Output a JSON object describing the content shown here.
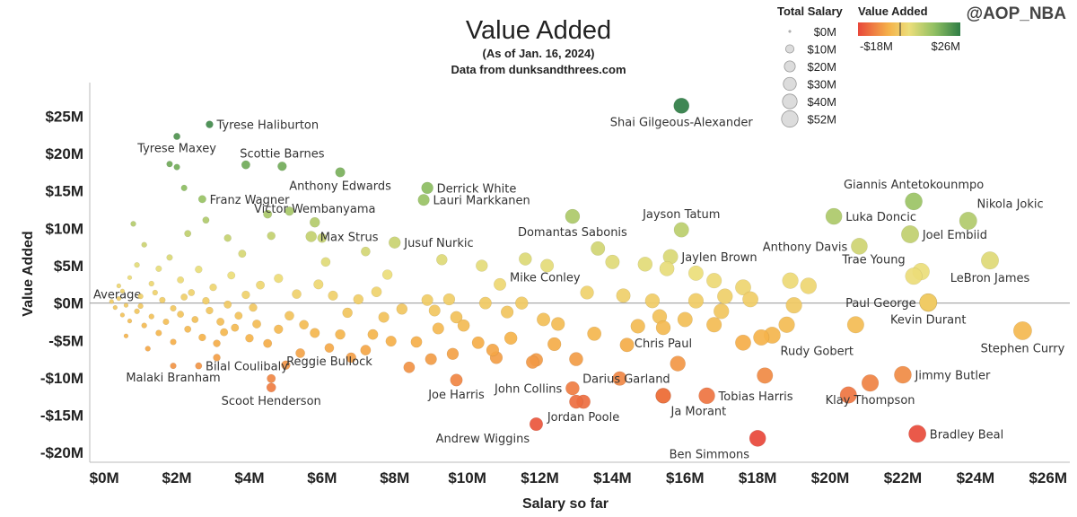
{
  "header": {
    "title": "Value Added",
    "subtitle": "(As of Jan. 16, 2024)",
    "source": "Data from dunksandthrees.com",
    "watermark": "@AOP_NBA"
  },
  "legend": {
    "size_title": "Total Salary",
    "size_entries": [
      "$0M",
      "$10M",
      "$20M",
      "$30M",
      "$40M",
      "$52M"
    ],
    "color_title": "Value Added",
    "color_min_label": "-$18M",
    "color_max_label": "$26M",
    "color_scale": [
      "#e8473a",
      "#f5b24a",
      "#ecde7a",
      "#8fbf62",
      "#2f7d45"
    ]
  },
  "chart_data": {
    "type": "scatter",
    "xlabel": "Salary so far",
    "ylabel": "Value Added",
    "x_unit": "$M",
    "y_unit": "$M",
    "xlim": [
      -0.4,
      26.6
    ],
    "ylim": [
      -21.3,
      29.5
    ],
    "x_ticks": [
      0,
      2,
      4,
      6,
      8,
      10,
      12,
      14,
      16,
      18,
      20,
      22,
      24,
      26
    ],
    "x_tick_labels": [
      "$0M",
      "$2M",
      "$4M",
      "$6M",
      "$8M",
      "$10M",
      "$12M",
      "$14M",
      "$16M",
      "$18M",
      "$20M",
      "$22M",
      "$24M",
      "$26M"
    ],
    "y_ticks": [
      -20,
      -15,
      -10,
      -5,
      0,
      5,
      10,
      15,
      20,
      25
    ],
    "y_tick_labels": [
      "-$20M",
      "-$15M",
      "-$10M",
      "-$5M",
      "$0M",
      "$5M",
      "$10M",
      "$15M",
      "$20M",
      "$25M"
    ],
    "reference_line": {
      "y": 0,
      "label": "Average"
    },
    "grid": false,
    "color_by": "Value Added",
    "size_by": "Total Salary",
    "labeled_points": [
      {
        "name": "Shai Gilgeous-Alexander",
        "x": 15.9,
        "y": 26.4,
        "salary": 35,
        "label_pos": "below"
      },
      {
        "name": "Tyrese Haliburton",
        "x": 2.9,
        "y": 23.9,
        "salary": 5,
        "label_pos": "right"
      },
      {
        "name": "Tyrese Maxey",
        "x": 2.0,
        "y": 22.3,
        "salary": 4,
        "label_pos": "below"
      },
      {
        "name": "Scottie Barnes",
        "x": 4.9,
        "y": 18.3,
        "salary": 9,
        "label_pos": "above"
      },
      {
        "name": "Anthony Edwards",
        "x": 6.5,
        "y": 17.5,
        "salary": 11,
        "label_pos": "below"
      },
      {
        "name": "Derrick White",
        "x": 8.9,
        "y": 15.4,
        "salary": 18,
        "label_pos": "right"
      },
      {
        "name": "Franz Wagner",
        "x": 2.7,
        "y": 13.9,
        "salary": 6,
        "label_pos": "right"
      },
      {
        "name": "Lauri Markkanen",
        "x": 8.8,
        "y": 13.8,
        "salary": 17,
        "label_pos": "right"
      },
      {
        "name": "Victor Wembanyama",
        "x": 5.8,
        "y": 10.8,
        "salary": 12,
        "label_pos": "above"
      },
      {
        "name": "Giannis Antetokounmpo",
        "x": 22.3,
        "y": 13.6,
        "salary": 45,
        "label_pos": "above"
      },
      {
        "name": "Jayson Tatum",
        "x": 15.9,
        "y": 9.8,
        "salary": 32,
        "label_pos": "above"
      },
      {
        "name": "Domantas Sabonis",
        "x": 12.9,
        "y": 11.6,
        "salary": 30,
        "label_pos": "below"
      },
      {
        "name": "Luka Doncic",
        "x": 20.1,
        "y": 11.6,
        "salary": 40,
        "label_pos": "right"
      },
      {
        "name": "Nikola Jokic",
        "x": 23.8,
        "y": 11.0,
        "salary": 47,
        "label_pos": "above-right"
      },
      {
        "name": "Joel Embiid",
        "x": 22.2,
        "y": 9.2,
        "salary": 47,
        "label_pos": "right"
      },
      {
        "name": "Max Strus",
        "x": 5.7,
        "y": 8.9,
        "salary": 15,
        "label_pos": "right"
      },
      {
        "name": "Jusuf Nurkic",
        "x": 8.0,
        "y": 8.1,
        "salary": 18,
        "label_pos": "right"
      },
      {
        "name": "Anthony Davis",
        "x": 20.8,
        "y": 7.6,
        "salary": 40,
        "label_pos": "left"
      },
      {
        "name": "Jaylen Brown",
        "x": 15.6,
        "y": 6.2,
        "salary": 32,
        "label_pos": "right"
      },
      {
        "name": "Trae Young",
        "x": 22.3,
        "y": 3.6,
        "salary": 43,
        "label_pos": "above-left"
      },
      {
        "name": "LeBron James",
        "x": 24.4,
        "y": 5.7,
        "salary": 47,
        "label_pos": "below"
      },
      {
        "name": "Mike Conley",
        "x": 13.3,
        "y": 1.4,
        "salary": 25,
        "label_pos": "above-left"
      },
      {
        "name": "Paul George",
        "x": 22.7,
        "y": 0.1,
        "salary": 45,
        "label_pos": "left"
      },
      {
        "name": "Kevin Durant",
        "x": 22.7,
        "y": 0.1,
        "salary": 47,
        "label_pos": "below"
      },
      {
        "name": "Stephen Curry",
        "x": 25.3,
        "y": -3.7,
        "salary": 52,
        "label_pos": "below"
      },
      {
        "name": "Rudy Gobert",
        "x": 18.4,
        "y": -4.3,
        "salary": 41,
        "label_pos": "below-right"
      },
      {
        "name": "Chris Paul",
        "x": 15.4,
        "y": -3.3,
        "salary": 30,
        "label_pos": "below"
      },
      {
        "name": "Bilal Coulibaly",
        "x": 2.6,
        "y": -8.4,
        "salary": 4,
        "label_pos": "right"
      },
      {
        "name": "Malaki Branham",
        "x": 1.9,
        "y": -8.4,
        "salary": 3,
        "label_pos": "below"
      },
      {
        "name": "Scoot Henderson",
        "x": 4.6,
        "y": -11.3,
        "salary": 10,
        "label_pos": "below"
      },
      {
        "name": "Reggie Bullock",
        "x": 6.2,
        "y": -6.0,
        "salary": 10,
        "label_pos": "below"
      },
      {
        "name": "Darius Garland",
        "x": 15.8,
        "y": -8.1,
        "salary": 34,
        "label_pos": "below-left"
      },
      {
        "name": "Jimmy Butler",
        "x": 22.0,
        "y": -9.6,
        "salary": 45,
        "label_pos": "right"
      },
      {
        "name": "Joe Harris",
        "x": 9.7,
        "y": -10.3,
        "salary": 20,
        "label_pos": "below"
      },
      {
        "name": "John Collins",
        "x": 12.9,
        "y": -11.4,
        "salary": 26,
        "label_pos": "left"
      },
      {
        "name": "Tobias Harris",
        "x": 16.6,
        "y": -12.4,
        "salary": 39,
        "label_pos": "right"
      },
      {
        "name": "Klay Thompson",
        "x": 21.1,
        "y": -10.7,
        "salary": 43,
        "label_pos": "below"
      },
      {
        "name": "Ja Morant",
        "x": 15.4,
        "y": -12.4,
        "salary": 34,
        "label_pos": "below-right"
      },
      {
        "name": "Jordan Poole",
        "x": 13.2,
        "y": -13.2,
        "salary": 27,
        "label_pos": "below"
      },
      {
        "name": "Andrew Wiggins",
        "x": 11.9,
        "y": -16.2,
        "salary": 24,
        "label_pos": "below-left"
      },
      {
        "name": "Ben Simmons",
        "x": 18.0,
        "y": -18.1,
        "salary": 40,
        "label_pos": "below-left"
      },
      {
        "name": "Bradley Beal",
        "x": 22.4,
        "y": -17.5,
        "salary": 46,
        "label_pos": "right"
      }
    ],
    "other_points": [
      {
        "x": 1.8,
        "y": 18.6,
        "salary": 3
      },
      {
        "x": 2.0,
        "y": 18.2,
        "salary": 3
      },
      {
        "x": 2.2,
        "y": 15.4,
        "salary": 3
      },
      {
        "x": 3.9,
        "y": 18.5,
        "salary": 8
      },
      {
        "x": 4.5,
        "y": 11.9,
        "salary": 8
      },
      {
        "x": 3.4,
        "y": 8.7,
        "salary": 5
      },
      {
        "x": 2.3,
        "y": 9.3,
        "salary": 4
      },
      {
        "x": 2.8,
        "y": 11.1,
        "salary": 4
      },
      {
        "x": 5.1,
        "y": 12.3,
        "salary": 9
      },
      {
        "x": 6.0,
        "y": 8.7,
        "salary": 10
      },
      {
        "x": 6.1,
        "y": 5.5,
        "salary": 10
      },
      {
        "x": 7.2,
        "y": 6.9,
        "salary": 10
      },
      {
        "x": 4.6,
        "y": 9.0,
        "salary": 7
      },
      {
        "x": 3.8,
        "y": 6.6,
        "salary": 6
      },
      {
        "x": 7.8,
        "y": 3.8,
        "salary": 12
      },
      {
        "x": 9.3,
        "y": 5.8,
        "salary": 15
      },
      {
        "x": 10.4,
        "y": 5.0,
        "salary": 18
      },
      {
        "x": 10.9,
        "y": 2.5,
        "salary": 20
      },
      {
        "x": 11.6,
        "y": 5.9,
        "salary": 22
      },
      {
        "x": 12.2,
        "y": 5.0,
        "salary": 24
      },
      {
        "x": 14.0,
        "y": 5.5,
        "salary": 28
      },
      {
        "x": 13.6,
        "y": 7.3,
        "salary": 28
      },
      {
        "x": 14.9,
        "y": 5.2,
        "salary": 30
      },
      {
        "x": 15.5,
        "y": 4.6,
        "salary": 31
      },
      {
        "x": 16.3,
        "y": 4.0,
        "salary": 32
      },
      {
        "x": 16.8,
        "y": 3.0,
        "salary": 33
      },
      {
        "x": 17.6,
        "y": 2.1,
        "salary": 36
      },
      {
        "x": 17.8,
        "y": 0.5,
        "salary": 36
      },
      {
        "x": 18.9,
        "y": 3.0,
        "salary": 38
      },
      {
        "x": 19.4,
        "y": 2.3,
        "salary": 39
      },
      {
        "x": 22.5,
        "y": 4.2,
        "salary": 44
      },
      {
        "x": 20.7,
        "y": -2.9,
        "salary": 42
      },
      {
        "x": 22.7,
        "y": 0.0,
        "salary": 45
      },
      {
        "x": 16.3,
        "y": 0.3,
        "salary": 33
      },
      {
        "x": 16.0,
        "y": -2.2,
        "salary": 32
      },
      {
        "x": 17.0,
        "y": -1.1,
        "salary": 34
      },
      {
        "x": 17.6,
        "y": -5.3,
        "salary": 36
      },
      {
        "x": 18.1,
        "y": -4.6,
        "salary": 37
      },
      {
        "x": 19.0,
        "y": -0.3,
        "salary": 38
      },
      {
        "x": 15.3,
        "y": -1.8,
        "salary": 30
      },
      {
        "x": 14.3,
        "y": 1.0,
        "salary": 28
      },
      {
        "x": 15.1,
        "y": 0.3,
        "salary": 30
      },
      {
        "x": 14.7,
        "y": -3.1,
        "salary": 29
      },
      {
        "x": 12.1,
        "y": -2.2,
        "salary": 24
      },
      {
        "x": 11.5,
        "y": 0.0,
        "salary": 22
      },
      {
        "x": 11.1,
        "y": -1.2,
        "salary": 21
      },
      {
        "x": 10.5,
        "y": 0.0,
        "salary": 20
      },
      {
        "x": 9.7,
        "y": -1.9,
        "salary": 19
      },
      {
        "x": 9.5,
        "y": 0.5,
        "salary": 18
      },
      {
        "x": 9.1,
        "y": -1.0,
        "salary": 17
      },
      {
        "x": 8.9,
        "y": 0.4,
        "salary": 17
      },
      {
        "x": 10.3,
        "y": -5.3,
        "salary": 20
      },
      {
        "x": 10.8,
        "y": -7.3,
        "salary": 21
      },
      {
        "x": 11.2,
        "y": -4.7,
        "salary": 22
      },
      {
        "x": 11.8,
        "y": -7.9,
        "salary": 23
      },
      {
        "x": 12.4,
        "y": -5.5,
        "salary": 25
      },
      {
        "x": 13.0,
        "y": -7.5,
        "salary": 26
      },
      {
        "x": 14.4,
        "y": -5.6,
        "salary": 28
      },
      {
        "x": 14.2,
        "y": -10.1,
        "salary": 28
      },
      {
        "x": 9.0,
        "y": -7.5,
        "salary": 17
      },
      {
        "x": 8.6,
        "y": -5.2,
        "salary": 16
      },
      {
        "x": 8.4,
        "y": -8.6,
        "salary": 16
      },
      {
        "x": 7.2,
        "y": -6.3,
        "salary": 13
      },
      {
        "x": 6.5,
        "y": -4.2,
        "salary": 12
      },
      {
        "x": 5.8,
        "y": -4.0,
        "salary": 11
      },
      {
        "x": 5.5,
        "y": -2.9,
        "salary": 10
      },
      {
        "x": 5.1,
        "y": -1.7,
        "salary": 10
      },
      {
        "x": 4.8,
        "y": -3.5,
        "salary": 9
      },
      {
        "x": 4.2,
        "y": -2.8,
        "salary": 8
      },
      {
        "x": 4.0,
        "y": -4.7,
        "salary": 7
      },
      {
        "x": 3.6,
        "y": -3.3,
        "salary": 6
      },
      {
        "x": 3.2,
        "y": -2.5,
        "salary": 6
      },
      {
        "x": 6.7,
        "y": -1.3,
        "salary": 12
      },
      {
        "x": 7.0,
        "y": 0.5,
        "salary": 12
      },
      {
        "x": 7.5,
        "y": 1.5,
        "salary": 13
      },
      {
        "x": 8.2,
        "y": -0.8,
        "salary": 15
      },
      {
        "x": 6.3,
        "y": 1.0,
        "salary": 11
      },
      {
        "x": 5.9,
        "y": 2.5,
        "salary": 11
      },
      {
        "x": 5.3,
        "y": 1.2,
        "salary": 10
      },
      {
        "x": 4.8,
        "y": 3.3,
        "salary": 9
      },
      {
        "x": 4.3,
        "y": 2.4,
        "salary": 8
      },
      {
        "x": 3.9,
        "y": 1.1,
        "salary": 7
      },
      {
        "x": 3.5,
        "y": 3.7,
        "salary": 6
      },
      {
        "x": 3.0,
        "y": 2.1,
        "salary": 5
      },
      {
        "x": 2.6,
        "y": 4.5,
        "salary": 5
      },
      {
        "x": 2.4,
        "y": 1.4,
        "salary": 4
      },
      {
        "x": 2.1,
        "y": 3.1,
        "salary": 4
      },
      {
        "x": 1.8,
        "y": 6.1,
        "salary": 3
      },
      {
        "x": 1.5,
        "y": 4.6,
        "salary": 3
      },
      {
        "x": 1.3,
        "y": 2.6,
        "salary": 2
      },
      {
        "x": 1.1,
        "y": 7.8,
        "salary": 2
      },
      {
        "x": 0.9,
        "y": 5.1,
        "salary": 2
      },
      {
        "x": 0.8,
        "y": 10.6,
        "salary": 2
      },
      {
        "x": 0.7,
        "y": 3.4,
        "salary": 1
      },
      {
        "x": 0.5,
        "y": 1.6,
        "salary": 1
      },
      {
        "x": 0.4,
        "y": 0.6,
        "salary": 1
      },
      {
        "x": 0.3,
        "y": -0.6,
        "salary": 1
      },
      {
        "x": 0.5,
        "y": -1.6,
        "salary": 1
      },
      {
        "x": 0.7,
        "y": -2.4,
        "salary": 1
      },
      {
        "x": 0.9,
        "y": -1.1,
        "salary": 2
      },
      {
        "x": 1.1,
        "y": -3.0,
        "salary": 2
      },
      {
        "x": 1.3,
        "y": -1.8,
        "salary": 2
      },
      {
        "x": 1.5,
        "y": -4.0,
        "salary": 3
      },
      {
        "x": 1.7,
        "y": -2.5,
        "salary": 3
      },
      {
        "x": 1.9,
        "y": -5.2,
        "salary": 3
      },
      {
        "x": 2.1,
        "y": -1.5,
        "salary": 4
      },
      {
        "x": 2.3,
        "y": -3.5,
        "salary": 4
      },
      {
        "x": 2.5,
        "y": -2.2,
        "salary": 4
      },
      {
        "x": 2.7,
        "y": -4.6,
        "salary": 5
      },
      {
        "x": 2.9,
        "y": -1.0,
        "salary": 5
      },
      {
        "x": 3.1,
        "y": -5.4,
        "salary": 5
      },
      {
        "x": 3.3,
        "y": -3.9,
        "salary": 6
      },
      {
        "x": 3.7,
        "y": -1.7,
        "salary": 6
      },
      {
        "x": 4.1,
        "y": -0.6,
        "salary": 7
      },
      {
        "x": 4.5,
        "y": -5.4,
        "salary": 8
      },
      {
        "x": 4.6,
        "y": -10.1,
        "salary": 8
      },
      {
        "x": 5.4,
        "y": -6.7,
        "salary": 10
      },
      {
        "x": 5.0,
        "y": -8.3,
        "salary": 9
      },
      {
        "x": 3.1,
        "y": -7.3,
        "salary": 5
      },
      {
        "x": 1.2,
        "y": -6.1,
        "salary": 2
      },
      {
        "x": 0.6,
        "y": -4.4,
        "salary": 1
      },
      {
        "x": 1.6,
        "y": 0.4,
        "salary": 3
      },
      {
        "x": 2.8,
        "y": 0.3,
        "salary": 5
      },
      {
        "x": 3.4,
        "y": -0.2,
        "salary": 6
      },
      {
        "x": 1.0,
        "y": 0.9,
        "salary": 2
      },
      {
        "x": 1.4,
        "y": 1.4,
        "salary": 2
      },
      {
        "x": 0.6,
        "y": -0.3,
        "salary": 1
      },
      {
        "x": 0.2,
        "y": 0.2,
        "salary": 1
      },
      {
        "x": 0.4,
        "y": 2.3,
        "salary": 1
      },
      {
        "x": 1.0,
        "y": -0.4,
        "salary": 2
      },
      {
        "x": 1.9,
        "y": -0.7,
        "salary": 3
      },
      {
        "x": 2.2,
        "y": 0.8,
        "salary": 4
      },
      {
        "x": 7.7,
        "y": -1.9,
        "salary": 14
      },
      {
        "x": 7.4,
        "y": -4.2,
        "salary": 13
      },
      {
        "x": 6.8,
        "y": -7.3,
        "salary": 12
      },
      {
        "x": 7.9,
        "y": -5.1,
        "salary": 14
      },
      {
        "x": 9.2,
        "y": -3.4,
        "salary": 17
      },
      {
        "x": 9.9,
        "y": -3.0,
        "salary": 19
      },
      {
        "x": 10.7,
        "y": -6.3,
        "salary": 21
      },
      {
        "x": 12.5,
        "y": -2.8,
        "salary": 25
      },
      {
        "x": 13.5,
        "y": -4.1,
        "salary": 27
      },
      {
        "x": 16.8,
        "y": -2.9,
        "salary": 33
      },
      {
        "x": 17.1,
        "y": 0.9,
        "salary": 34
      },
      {
        "x": 18.8,
        "y": -2.9,
        "salary": 38
      },
      {
        "x": 18.2,
        "y": -9.7,
        "salary": 37
      },
      {
        "x": 20.5,
        "y": -12.3,
        "salary": 42
      },
      {
        "x": 15.4,
        "y": -12.4,
        "salary": 31
      },
      {
        "x": 13.0,
        "y": -13.2,
        "salary": 26
      },
      {
        "x": 11.9,
        "y": -7.6,
        "salary": 24
      },
      {
        "x": 9.6,
        "y": -6.8,
        "salary": 18
      }
    ]
  }
}
